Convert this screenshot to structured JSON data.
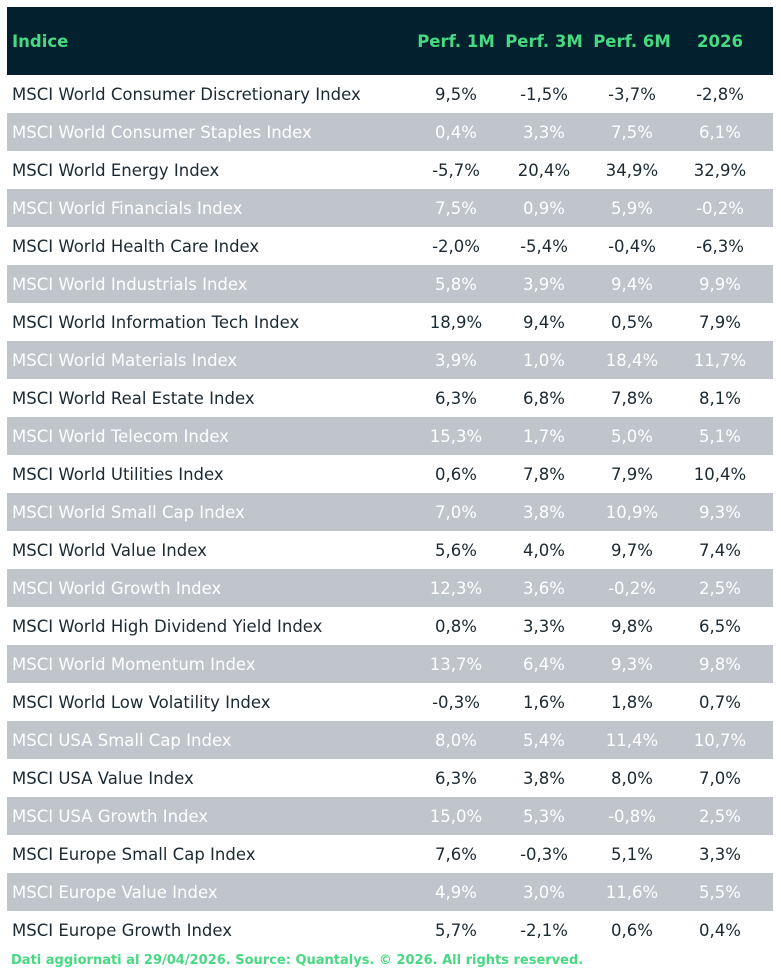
{
  "table": {
    "header": [
      "Indice",
      "Perf. 1M",
      "Perf. 3M",
      "Perf. 6M",
      "2026"
    ],
    "rows": [
      [
        "MSCI World Consumer Discretionary Index",
        "9,5%",
        "-1,5%",
        "-3,7%",
        "-2,8%"
      ],
      [
        "MSCI World Consumer Staples Index",
        "0,4%",
        "3,3%",
        "7,5%",
        "6,1%"
      ],
      [
        "MSCI World Energy Index",
        "-5,7%",
        "20,4%",
        "34,9%",
        "32,9%"
      ],
      [
        "MSCI World Financials Index",
        "7,5%",
        "0,9%",
        "5,9%",
        "-0,2%"
      ],
      [
        "MSCI World Health Care Index",
        "-2,0%",
        "-5,4%",
        "-0,4%",
        "-6,3%"
      ],
      [
        "MSCI World Industrials Index",
        "5,8%",
        "3,9%",
        "9,4%",
        "9,9%"
      ],
      [
        "MSCI World Information Tech Index",
        "18,9%",
        "9,4%",
        "0,5%",
        "7,9%"
      ],
      [
        "MSCI World Materials Index",
        "3,9%",
        "1,0%",
        "18,4%",
        "11,7%"
      ],
      [
        "MSCI World Real Estate Index",
        "6,3%",
        "6,8%",
        "7,8%",
        "8,1%"
      ],
      [
        "MSCI World Telecom Index",
        "15,3%",
        "1,7%",
        "5,0%",
        "5,1%"
      ],
      [
        "MSCI World Utilities Index",
        "0,6%",
        "7,8%",
        "7,9%",
        "10,4%"
      ],
      [
        "MSCI World Small Cap Index",
        "7,0%",
        "3,8%",
        "10,9%",
        "9,3%"
      ],
      [
        "MSCI World Value Index",
        "5,6%",
        "4,0%",
        "9,7%",
        "7,4%"
      ],
      [
        "MSCI World Growth Index",
        "12,3%",
        "3,6%",
        "-0,2%",
        "2,5%"
      ],
      [
        "MSCI World High Dividend Yield Index",
        "0,8%",
        "3,3%",
        "9,8%",
        "6,5%"
      ],
      [
        "MSCI World Momentum Index",
        "13,7%",
        "6,4%",
        "9,3%",
        "9,8%"
      ],
      [
        "MSCI World Low Volatility Index",
        "-0,3%",
        "1,6%",
        "1,8%",
        "0,7%"
      ],
      [
        "MSCI USA Small Cap Index",
        "8,0%",
        "5,4%",
        "11,4%",
        "10,7%"
      ],
      [
        "MSCI USA Value Index",
        "6,3%",
        "3,8%",
        "8,0%",
        "7,0%"
      ],
      [
        "MSCI USA Growth Index",
        "15,0%",
        "5,3%",
        "-0,8%",
        "2,5%"
      ],
      [
        "MSCI Europe Small Cap Index",
        "7,6%",
        "-0,3%",
        "5,1%",
        "3,3%"
      ],
      [
        "MSCI Europe Value Index",
        "4,9%",
        "3,0%",
        "11,6%",
        "5,5%"
      ],
      [
        "MSCI Europe Growth Index",
        "5,7%",
        "-2,1%",
        "0,6%",
        "0,4%"
      ]
    ]
  },
  "footer": "Dati aggiornati al 29/04/2026. Source: Quantalys. © 2026. All rights reserved."
}
